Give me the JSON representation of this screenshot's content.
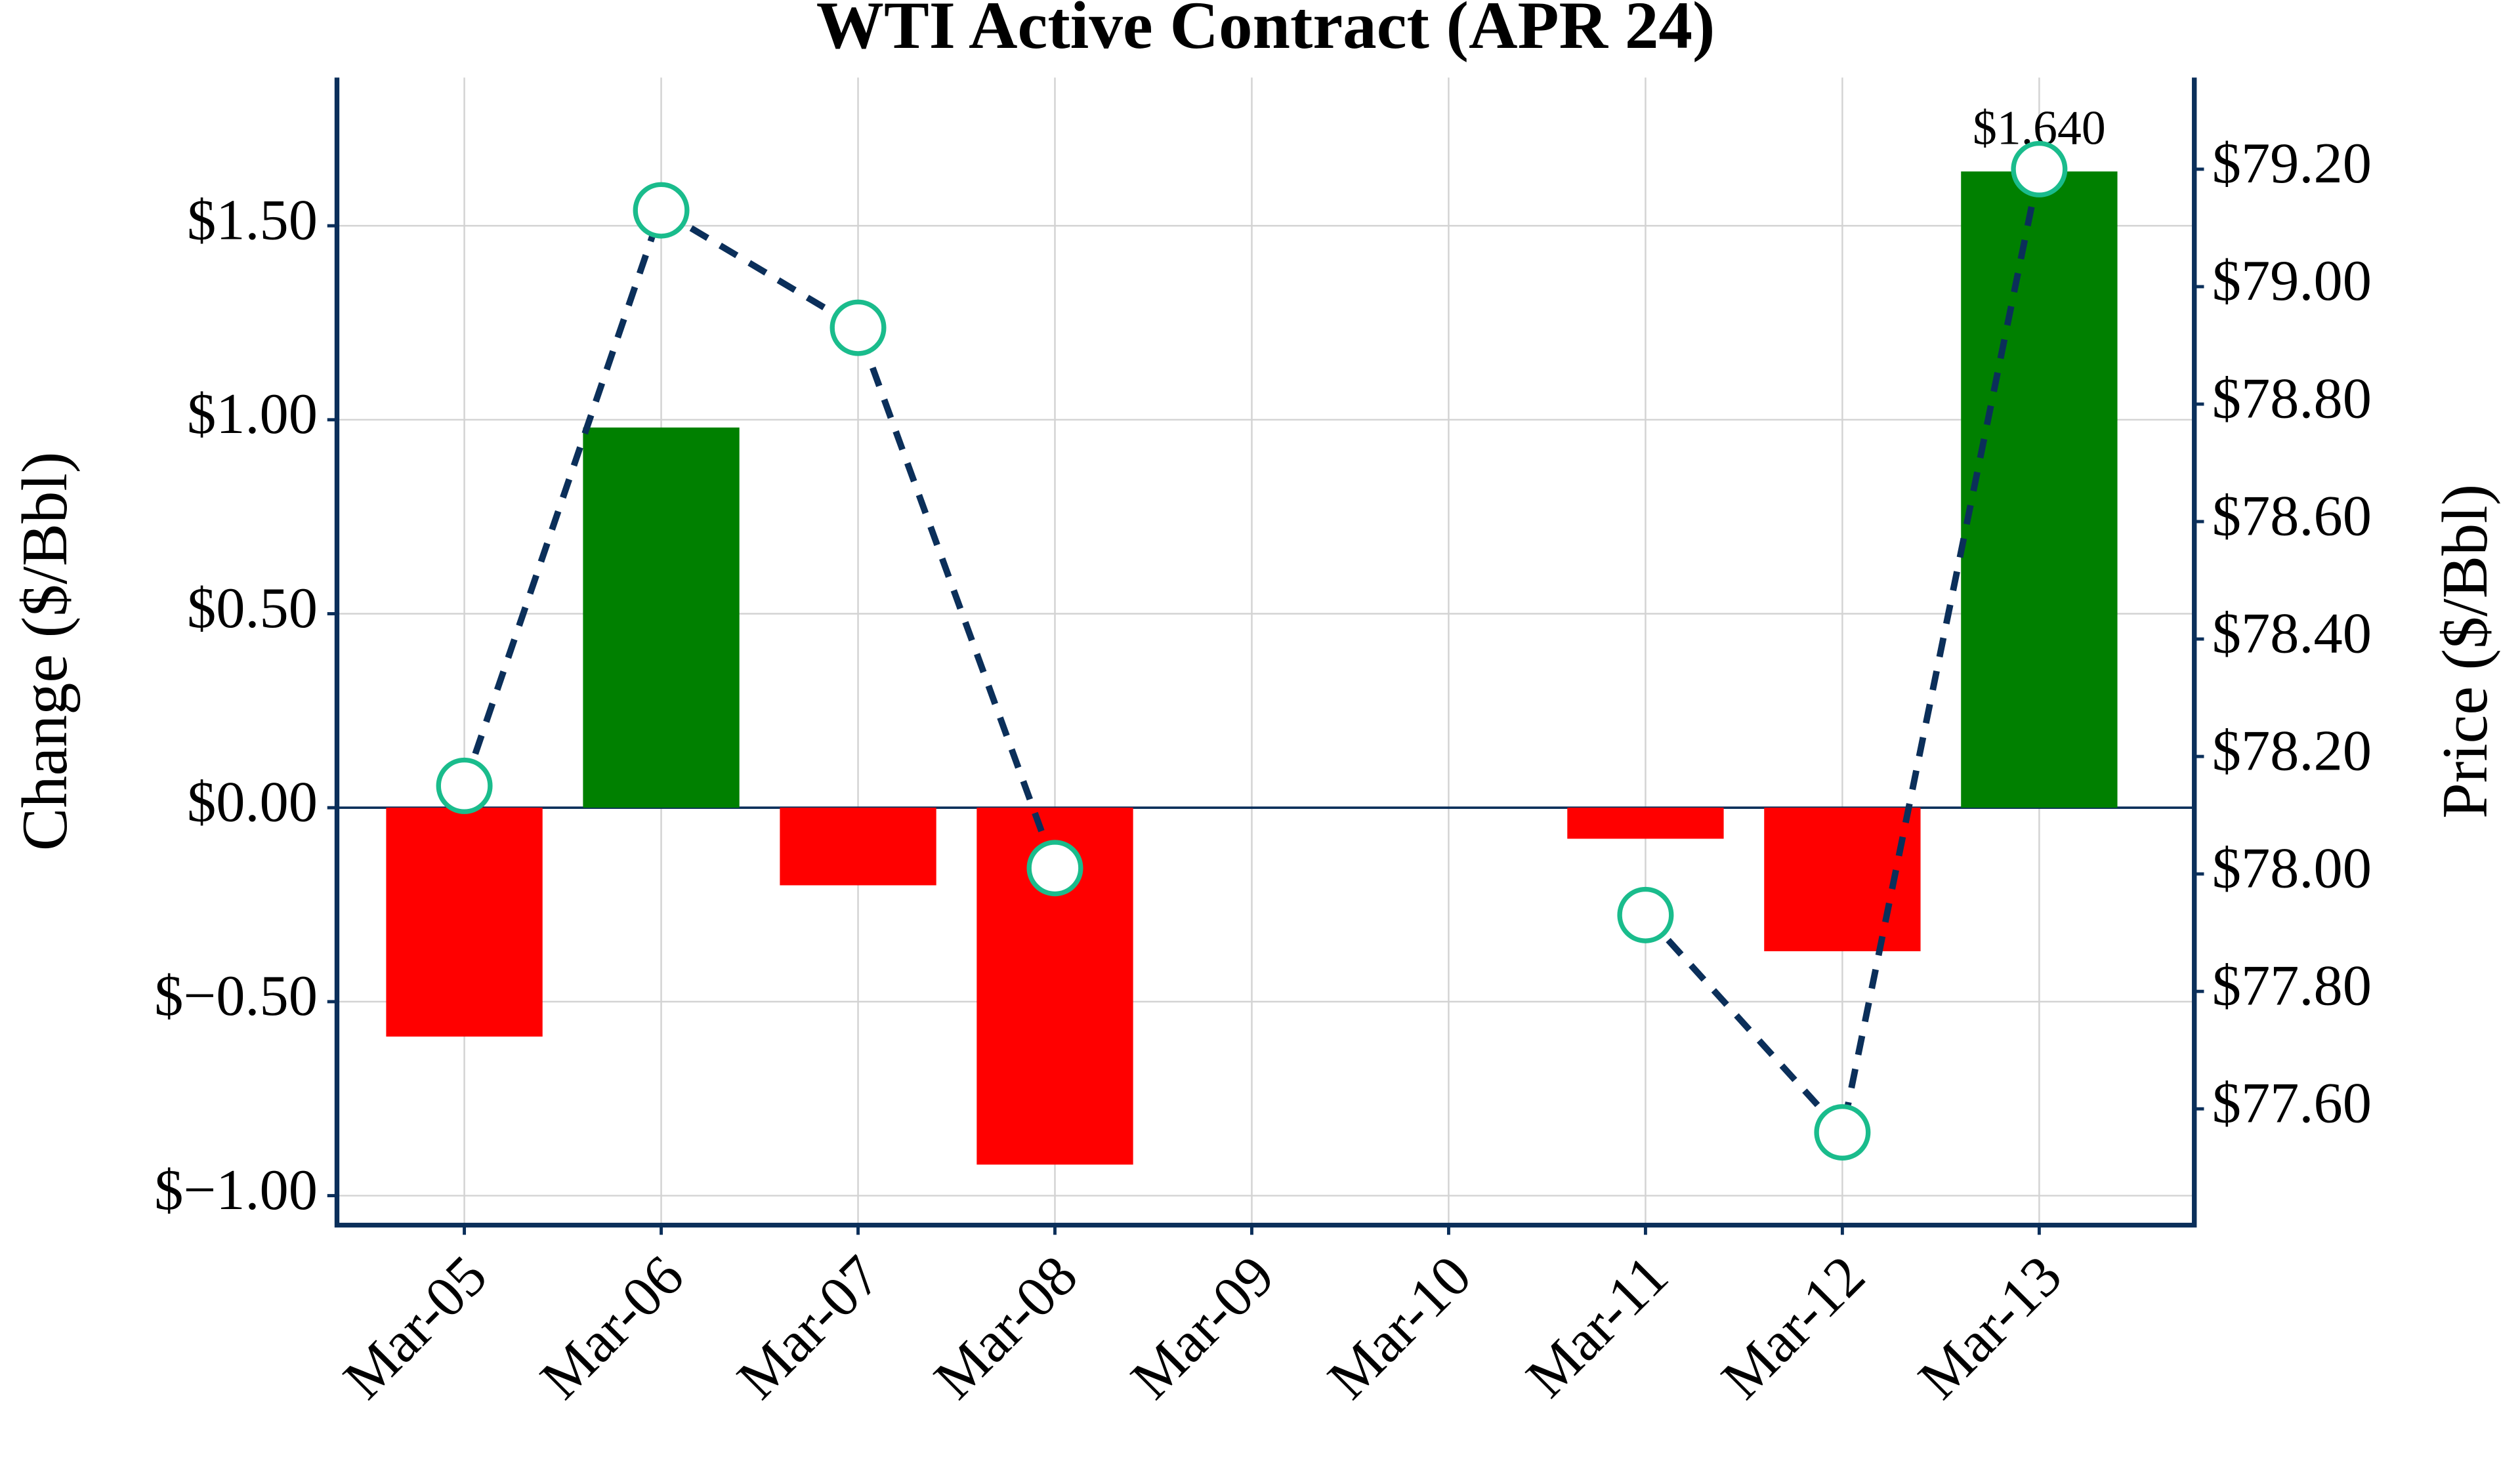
{
  "chart_data": {
    "type": "bar",
    "title": "WTI Active Contract (APR 24)",
    "ylabel": "Change ($/Bbl)",
    "y2label": "Price ($/Bbl)",
    "categories": [
      "Mar-05",
      "Mar-06",
      "Mar-07",
      "Mar-08",
      "Mar-09",
      "Mar-10",
      "Mar-11",
      "Mar-12",
      "Mar-13"
    ],
    "series": [
      {
        "type": "bar",
        "positive_color": "#008000",
        "negative_color": "#ff0000",
        "values": [
          -0.59,
          0.98,
          -0.2,
          -0.92,
          null,
          null,
          -0.08,
          -0.37,
          1.64
        ],
        "value_labels": [
          null,
          null,
          null,
          null,
          null,
          null,
          null,
          null,
          "$1.640"
        ]
      },
      {
        "type": "line",
        "axis": "y2",
        "color": "#0b2f5a",
        "marker_color": "#1abc8c",
        "dashed": true,
        "values": [
          78.15,
          79.13,
          78.93,
          78.01,
          null,
          null,
          77.93,
          77.56,
          79.2
        ]
      }
    ],
    "ylim": [
      -1.076,
      1.882
    ],
    "yticks": [
      {
        "value": -1,
        "label": "$−1.00"
      },
      {
        "value": -0.5,
        "label": "$−0.50"
      },
      {
        "value": 0,
        "label": "$0.00"
      },
      {
        "value": 0.5,
        "label": "$0.50"
      },
      {
        "value": 1,
        "label": "$1.00"
      },
      {
        "value": 1.5,
        "label": "$1.50"
      }
    ],
    "y2lim": [
      77.402,
      79.356
    ],
    "y2ticks": [
      {
        "value": 77.6,
        "label": "$77.60"
      },
      {
        "value": 77.8,
        "label": "$77.80"
      },
      {
        "value": 78,
        "label": "$78.00"
      },
      {
        "value": 78.2,
        "label": "$78.20"
      },
      {
        "value": 78.4,
        "label": "$78.40"
      },
      {
        "value": 78.6,
        "label": "$78.60"
      },
      {
        "value": 78.8,
        "label": "$78.80"
      },
      {
        "value": 79,
        "label": "$79.00"
      },
      {
        "value": 79.2,
        "label": "$79.20"
      }
    ],
    "grid": true,
    "zero_line_color": "#0b2f5a",
    "axis_color": "#0b2f5a"
  }
}
